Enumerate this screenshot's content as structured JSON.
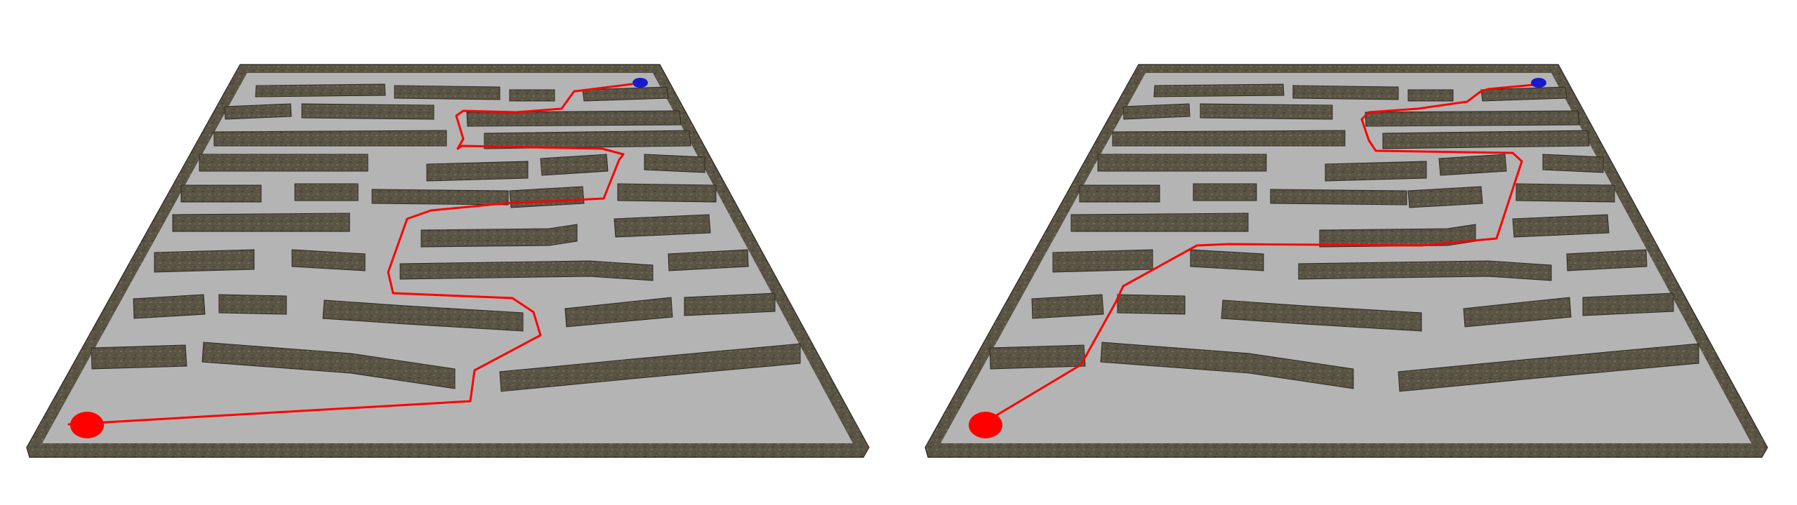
{
  "scene": {
    "panels": [
      {
        "name": "maze-left",
        "path_color": "#ff0000",
        "start_color": "#ff0000",
        "goal_color": "#1a1acc",
        "path": [
          [
            98,
            605
          ],
          [
            670,
            572
          ],
          [
            676,
            528
          ],
          [
            770,
            478
          ],
          [
            760,
            445
          ],
          [
            730,
            425
          ],
          [
            560,
            418
          ],
          [
            553,
            388
          ],
          [
            580,
            312
          ],
          [
            614,
            300
          ],
          [
            718,
            290
          ],
          [
            860,
            283
          ],
          [
            882,
            228
          ],
          [
            888,
            220
          ],
          [
            858,
            212
          ],
          [
            658,
            208
          ],
          [
            652,
            212
          ],
          [
            660,
            198
          ],
          [
            650,
            165
          ],
          [
            660,
            158
          ],
          [
            735,
            160
          ],
          [
            800,
            155
          ],
          [
            818,
            130
          ],
          [
            820,
            130
          ],
          [
            900,
            120
          ]
        ]
      },
      {
        "name": "maze-right",
        "path_color": "#ff0000",
        "start_color": "#ff0000",
        "goal_color": "#1a1acc",
        "path": [
          [
            1398,
            605
          ],
          [
            1540,
            520
          ],
          [
            1590,
            430
          ],
          [
            1600,
            408
          ],
          [
            1705,
            350
          ],
          [
            1750,
            348
          ],
          [
            2025,
            350
          ],
          [
            2132,
            340
          ],
          [
            2168,
            230
          ],
          [
            2155,
            218
          ],
          [
            1960,
            215
          ],
          [
            1950,
            200
          ],
          [
            1940,
            170
          ],
          [
            1950,
            160
          ],
          [
            2020,
            155
          ],
          [
            2090,
            145
          ],
          [
            2110,
            130
          ],
          [
            2120,
            127
          ],
          [
            2195,
            120
          ]
        ]
      }
    ]
  }
}
